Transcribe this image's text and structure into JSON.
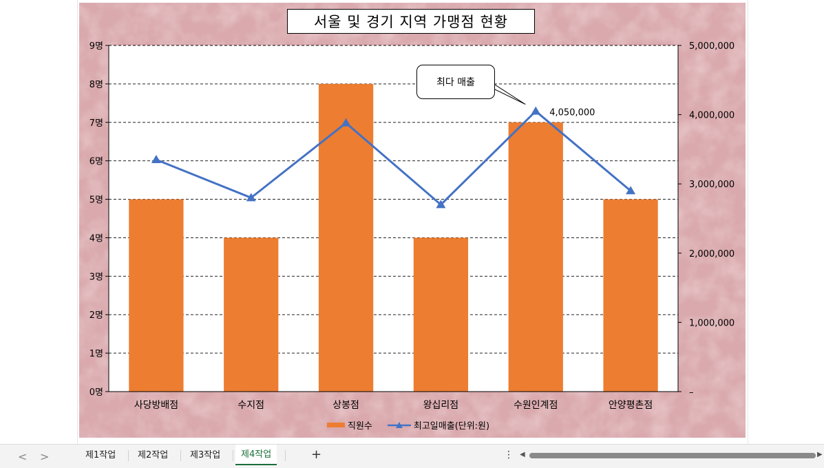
{
  "chart_data": {
    "type": "bar",
    "title": "서울 및 경기 지역 가맹점 현황",
    "categories": [
      "사당방배점",
      "수지점",
      "상봉점",
      "왕십리점",
      "수원인계점",
      "안양평촌점"
    ],
    "series": [
      {
        "name": "직원수",
        "type": "bar",
        "axis": "left",
        "color": "#ed7d31",
        "values": [
          5,
          4,
          8,
          4,
          7,
          5
        ]
      },
      {
        "name": "최고일매출(단위:원)",
        "type": "line",
        "axis": "right",
        "color": "#4472c4",
        "marker": "triangle",
        "values": [
          3350000,
          2800000,
          3880000,
          2700000,
          4050000,
          2900000
        ]
      }
    ],
    "y_left": {
      "min": 0,
      "max": 9,
      "step": 1,
      "suffix": "명"
    },
    "y_right": {
      "min": 0,
      "max": 5000000,
      "step": 1000000
    },
    "grid": true,
    "legend": "bottom",
    "annotation": {
      "text": "최다 매출",
      "target_category": "수원인계점"
    },
    "data_label": {
      "category": "수원인계점",
      "text": "4,050,000"
    }
  },
  "tabs": {
    "nav_prev": "<",
    "nav_next": ">",
    "items": [
      {
        "label": "제1작업",
        "active": false
      },
      {
        "label": "제2작업",
        "active": false
      },
      {
        "label": "제3작업",
        "active": false
      },
      {
        "label": "제4작업",
        "active": true
      }
    ],
    "add": "+",
    "more": "⋮"
  }
}
